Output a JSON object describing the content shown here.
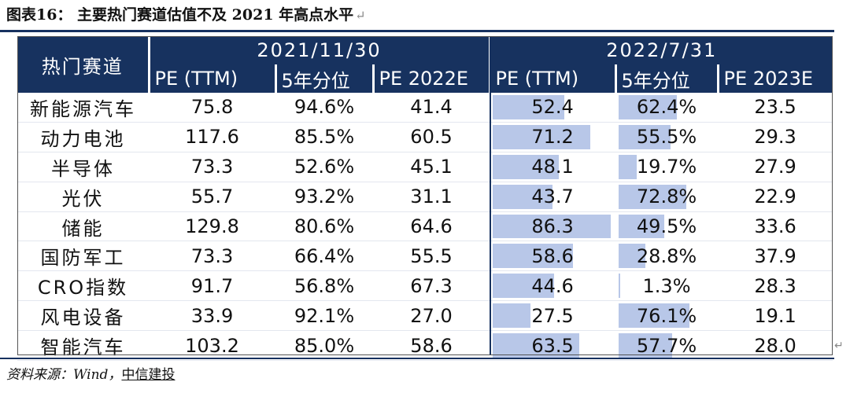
{
  "title": "图表16：  主要热门赛道估值不及 2021 年高点水平",
  "return_mark": "↵",
  "table": {
    "corner_label": "热门赛道",
    "group1": "2021/11/30",
    "group2": "2022/7/31",
    "sub_headers": [
      "PE (TTM)",
      "5年分位",
      "PE 2022E",
      "PE (TTM)",
      "5年分位",
      "PE 2023E"
    ],
    "rows": [
      {
        "name": "新能源汽车",
        "pe_ttm_2021": "75.8",
        "pct_2021": "94.6%",
        "pe_2022e": "41.4",
        "pe_ttm_2022": "52.4",
        "pe_ttm_2022_v": 52.4,
        "pct_2022": "62.4%",
        "pct_2022_v": 62.4,
        "pe_2023e": "23.5"
      },
      {
        "name": "动力电池",
        "pe_ttm_2021": "117.6",
        "pct_2021": "85.5%",
        "pe_2022e": "60.5",
        "pe_ttm_2022": "71.2",
        "pe_ttm_2022_v": 71.2,
        "pct_2022": "55.5%",
        "pct_2022_v": 55.5,
        "pe_2023e": "29.3"
      },
      {
        "name": "半导体",
        "pe_ttm_2021": "73.3",
        "pct_2021": "52.6%",
        "pe_2022e": "45.1",
        "pe_ttm_2022": "48.1",
        "pe_ttm_2022_v": 48.1,
        "pct_2022": "19.7%",
        "pct_2022_v": 19.7,
        "pe_2023e": "27.9"
      },
      {
        "name": "光伏",
        "pe_ttm_2021": "55.7",
        "pct_2021": "93.2%",
        "pe_2022e": "31.1",
        "pe_ttm_2022": "43.7",
        "pe_ttm_2022_v": 43.7,
        "pct_2022": "72.8%",
        "pct_2022_v": 72.8,
        "pe_2023e": "22.9"
      },
      {
        "name": "储能",
        "pe_ttm_2021": "129.8",
        "pct_2021": "80.6%",
        "pe_2022e": "64.6",
        "pe_ttm_2022": "86.3",
        "pe_ttm_2022_v": 86.3,
        "pct_2022": "49.5%",
        "pct_2022_v": 49.5,
        "pe_2023e": "33.6"
      },
      {
        "name": "国防军工",
        "pe_ttm_2021": "73.3",
        "pct_2021": "66.4%",
        "pe_2022e": "55.5",
        "pe_ttm_2022": "58.6",
        "pe_ttm_2022_v": 58.6,
        "pct_2022": "28.8%",
        "pct_2022_v": 28.8,
        "pe_2023e": "37.9"
      },
      {
        "name": "CRO指数",
        "pe_ttm_2021": "91.7",
        "pct_2021": "56.8%",
        "pe_2022e": "67.3",
        "pe_ttm_2022": "44.6",
        "pe_ttm_2022_v": 44.6,
        "pct_2022": "1.3%",
        "pct_2022_v": 1.3,
        "pe_2023e": "28.3"
      },
      {
        "name": "风电设备",
        "pe_ttm_2021": "33.9",
        "pct_2021": "92.1%",
        "pe_2022e": "27.0",
        "pe_ttm_2022": "27.5",
        "pe_ttm_2022_v": 27.5,
        "pct_2022": "76.1%",
        "pct_2022_v": 76.1,
        "pe_2023e": "19.1"
      },
      {
        "name": "智能汽车",
        "pe_ttm_2021": "103.2",
        "pct_2021": "85.0%",
        "pe_2022e": "58.6",
        "pe_ttm_2022": "63.5",
        "pe_ttm_2022_v": 63.5,
        "pct_2022": "57.7%",
        "pct_2022_v": 57.7,
        "pe_2023e": "28.0"
      }
    ],
    "bar_max": {
      "pe_ttm_2022": 86.3,
      "pct_2022": 100
    }
  },
  "source": {
    "prefix": "资料来源：Wind，",
    "underlined": "中信建投"
  },
  "colors": {
    "header_bg": "#17325f",
    "bar": "#b8c7e8",
    "rule": "#17315f"
  }
}
